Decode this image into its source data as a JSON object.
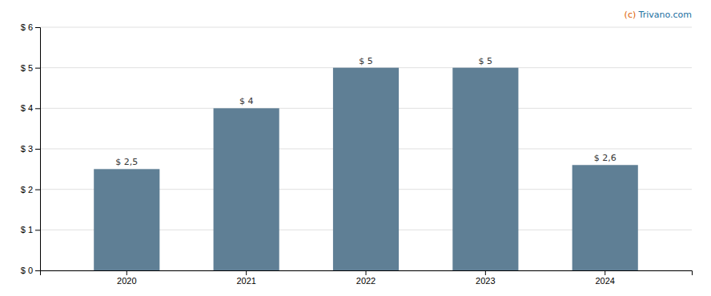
{
  "chart_data": {
    "type": "bar",
    "categories": [
      "2020",
      "2021",
      "2022",
      "2023",
      "2024"
    ],
    "values": [
      2.5,
      4.0,
      5.0,
      5.0,
      2.6
    ],
    "value_labels": [
      "$ 2,5",
      "$ 4",
      "$ 5",
      "$ 5",
      "$ 2,6"
    ],
    "data_labels": true,
    "color": "#5f7f95",
    "ylim": [
      0,
      6
    ],
    "yticks": [
      {
        "value": 0,
        "label": "$ 0"
      },
      {
        "value": 1,
        "label": "$ 1"
      },
      {
        "value": 2,
        "label": "$ 2"
      },
      {
        "value": 3,
        "label": "$ 3"
      },
      {
        "value": 4,
        "label": "$ 4"
      },
      {
        "value": 5,
        "label": "$ 5"
      },
      {
        "value": 6,
        "label": "$ 6"
      }
    ],
    "grid": true,
    "annotations": [
      {
        "text": "(c)",
        "color": "#e06000"
      },
      {
        "text": "Trivano.com",
        "color": "#1a6fa0"
      }
    ]
  }
}
